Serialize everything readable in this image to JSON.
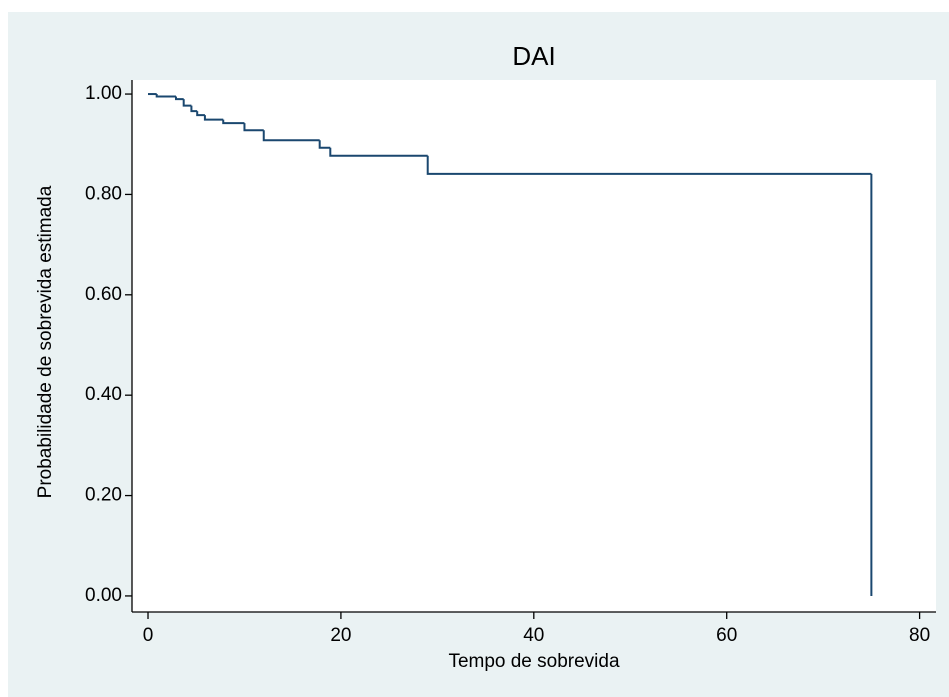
{
  "chart_data": {
    "type": "line",
    "step": true,
    "title": "DAI",
    "x_label": "Tempo de sobrevida",
    "y_label": "Probabilidade de sobrevida estimada",
    "x": [
      0,
      0.9,
      2.9,
      3.7,
      4.5,
      5.1,
      5.9,
      7.8,
      10,
      12,
      17.8,
      18.9,
      29,
      75
    ],
    "series": [
      {
        "name": "DAI",
        "color": "#1a476f",
        "values": [
          1.0,
          0.995,
          0.99,
          0.977,
          0.966,
          0.958,
          0.949,
          0.942,
          0.928,
          0.908,
          0.893,
          0.877,
          0.841,
          0
        ]
      }
    ],
    "xlim": [
      -1.66,
      81.7
    ],
    "ylim": [
      -0.032,
      1.028
    ],
    "xticks": [
      0,
      20,
      40,
      60,
      80
    ],
    "yticks": [
      {
        "value": 0,
        "label": "0.00"
      },
      {
        "value": 0.2,
        "label": "0.20"
      },
      {
        "value": 0.4,
        "label": "0.40"
      },
      {
        "value": 0.6,
        "label": "0.60"
      },
      {
        "value": 0.8,
        "label": "0.80"
      },
      {
        "value": 1.0,
        "label": "1.00"
      }
    ],
    "grid": false
  }
}
